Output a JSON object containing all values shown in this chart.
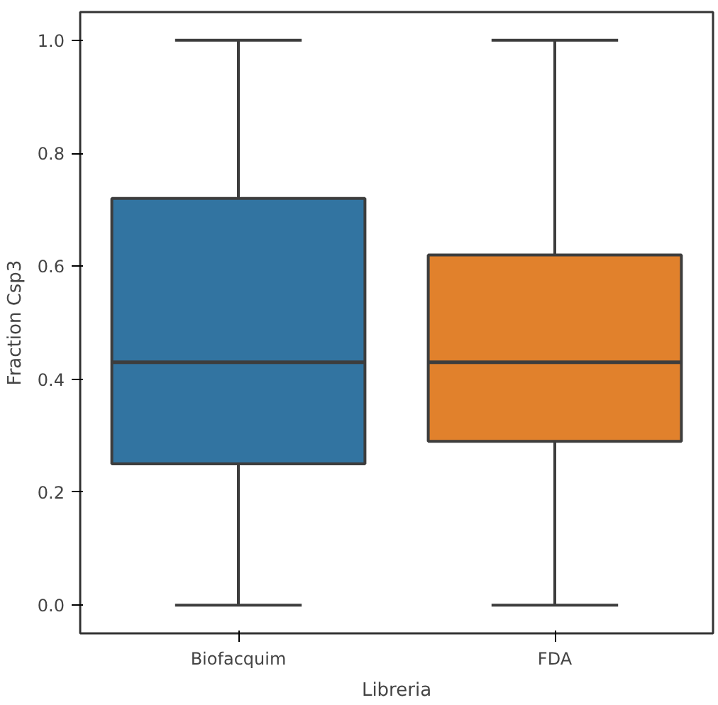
{
  "chart_data": {
    "type": "box",
    "xlabel": "Libreria",
    "ylabel": "Fraction Csp3",
    "categories": [
      "Biofacquim",
      "FDA"
    ],
    "colors": [
      "#3274a1",
      "#e1812c"
    ],
    "boxes": [
      {
        "low": 0.0,
        "q1": 0.25,
        "median": 0.43,
        "q3": 0.72,
        "high": 1.0
      },
      {
        "low": 0.0,
        "q1": 0.29,
        "median": 0.43,
        "q3": 0.62,
        "high": 1.0
      }
    ],
    "ylim": [
      -0.05,
      1.05
    ],
    "yticks": [
      {
        "value": 0,
        "label": "0.0"
      },
      0.2,
      0.4,
      0.6,
      0.8,
      {
        "value": 1,
        "label": "1.0"
      }
    ],
    "grid": false
  }
}
